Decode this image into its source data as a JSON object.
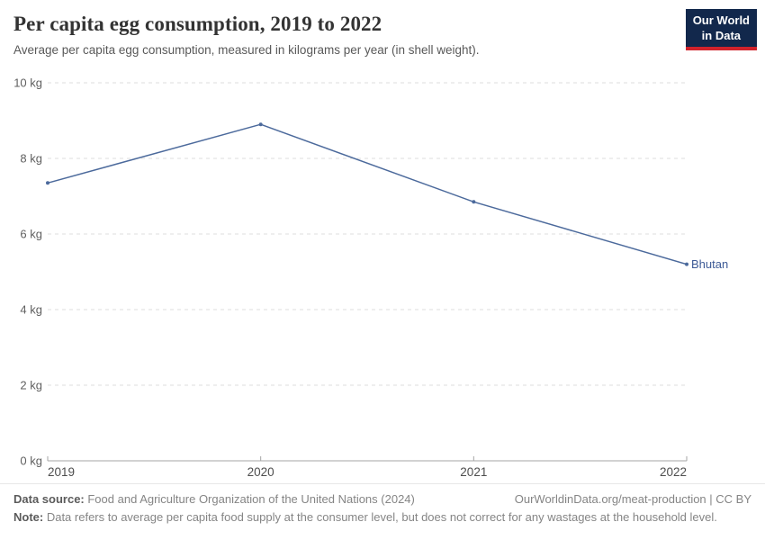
{
  "header": {
    "title": "Per capita egg consumption, 2019 to 2022",
    "subtitle": "Average per capita egg consumption, measured in kilograms per year (in shell weight)."
  },
  "logo": {
    "line1": "Our World",
    "line2": "in Data",
    "bg_color": "#12284c",
    "accent_color": "#d1222b"
  },
  "chart_data": {
    "type": "line",
    "title": "Per capita egg consumption, 2019 to 2022",
    "x": [
      2019,
      2020,
      2021,
      2022
    ],
    "xtick_labels": [
      "2019",
      "2020",
      "2021",
      "2022"
    ],
    "series": [
      {
        "name": "Bhutan",
        "values": [
          7.35,
          8.9,
          6.85,
          5.2
        ]
      }
    ],
    "unit": "kg",
    "ylim": [
      0,
      10
    ],
    "yticks": [
      0,
      2,
      4,
      6,
      8,
      10
    ],
    "ytick_labels": [
      "0 kg",
      "2 kg",
      "4 kg",
      "6 kg",
      "8 kg",
      "10 kg"
    ],
    "xlabel": "",
    "ylabel": "",
    "grid": "horizontal-dashed",
    "legend_position": "end-of-line-label",
    "line_color": "#4C6A9C",
    "entity_label_color": "#3d5a96",
    "grid_color": "#dddddd",
    "axis_color": "#a5a5a5",
    "ytick_label_color": "#5f5f5f",
    "xtick_label_color": "#4d4d4d"
  },
  "footer": {
    "source_label": "Data source:",
    "source_text": " Food and Agriculture Organization of the United Nations (2024)",
    "link_text": "OurWorldinData.org/meat-production | CC BY",
    "note_label": "Note:",
    "note_text": " Data refers to average per capita food supply at the consumer level, but does not correct for any wastages at the household level."
  }
}
